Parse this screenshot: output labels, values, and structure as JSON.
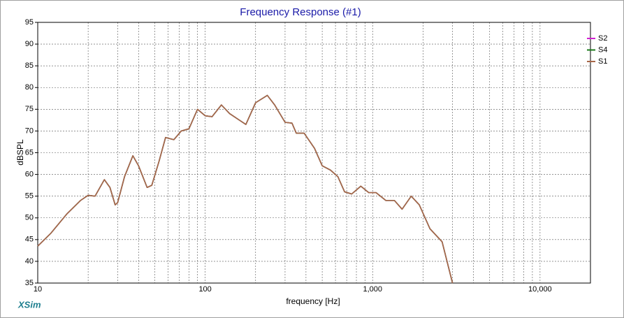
{
  "brand": "XSim",
  "chart_data": {
    "type": "line",
    "title": "Frequency Response (#1)",
    "x_label": "frequency [Hz]",
    "y_label": "dBSPL",
    "x_scale": "log",
    "grid": true,
    "legend": "right",
    "xlim": [
      10,
      20000
    ],
    "xticks": [
      10,
      100,
      {
        "value": 1000,
        "label": "1,000"
      },
      {
        "value": 10000,
        "label": "10,000"
      }
    ],
    "ylim": [
      35,
      95
    ],
    "yticks": [
      35,
      40,
      45,
      50,
      55,
      60,
      65,
      70,
      75,
      80,
      85,
      90,
      95
    ],
    "x": [
      10,
      12,
      15,
      18,
      20,
      22,
      25,
      27,
      29,
      30,
      33,
      37,
      40,
      45,
      48,
      53,
      58,
      65,
      72,
      80,
      90,
      100,
      110,
      125,
      140,
      160,
      175,
      200,
      235,
      260,
      300,
      330,
      350,
      390,
      450,
      500,
      560,
      620,
      680,
      750,
      850,
      950,
      1050,
      1200,
      1350,
      1500,
      1700,
      1900,
      2200,
      2600,
      3000
    ],
    "series": [
      {
        "name": "S2",
        "color": "#d020d0",
        "values": [
          43.5,
          46.5,
          51,
          54,
          55.2,
          55,
          58.8,
          57,
          53,
          53.5,
          59.5,
          64.3,
          62,
          57,
          57.5,
          63,
          68.5,
          68,
          70,
          70.5,
          75,
          73.5,
          73.3,
          76,
          74,
          72.5,
          71.5,
          76.5,
          78.2,
          76,
          72,
          71.8,
          69.5,
          69.5,
          66,
          62,
          61,
          59.5,
          56,
          55.5,
          57.3,
          55.8,
          55.8,
          54,
          54,
          52,
          55,
          53,
          47.5,
          44.5,
          35
        ]
      },
      {
        "name": "S4",
        "color": "#1a7a1a",
        "values": [
          43.5,
          46.5,
          51,
          54,
          55.2,
          55,
          58.8,
          57,
          53,
          53.5,
          59.5,
          64.3,
          62,
          57,
          57.5,
          63,
          68.5,
          68,
          70,
          70.5,
          75,
          73.5,
          73.3,
          76,
          74,
          72.5,
          71.5,
          76.5,
          78.2,
          76,
          72,
          71.8,
          69.5,
          69.5,
          66,
          62,
          61,
          59.5,
          56,
          55.5,
          57.3,
          55.8,
          55.8,
          54,
          54,
          52,
          55,
          53,
          47.5,
          44.5,
          35
        ]
      },
      {
        "name": "S1",
        "color": "#a8684a",
        "values": [
          43.5,
          46.5,
          51,
          54,
          55.2,
          55,
          58.8,
          57,
          53,
          53.5,
          59.5,
          64.3,
          62,
          57,
          57.5,
          63,
          68.5,
          68,
          70,
          70.5,
          75,
          73.5,
          73.3,
          76,
          74,
          72.5,
          71.5,
          76.5,
          78.2,
          76,
          72,
          71.8,
          69.5,
          69.5,
          66,
          62,
          61,
          59.5,
          56,
          55.5,
          57.3,
          55.8,
          55.8,
          54,
          54,
          52,
          55,
          53,
          47.5,
          44.5,
          35
        ]
      }
    ]
  }
}
